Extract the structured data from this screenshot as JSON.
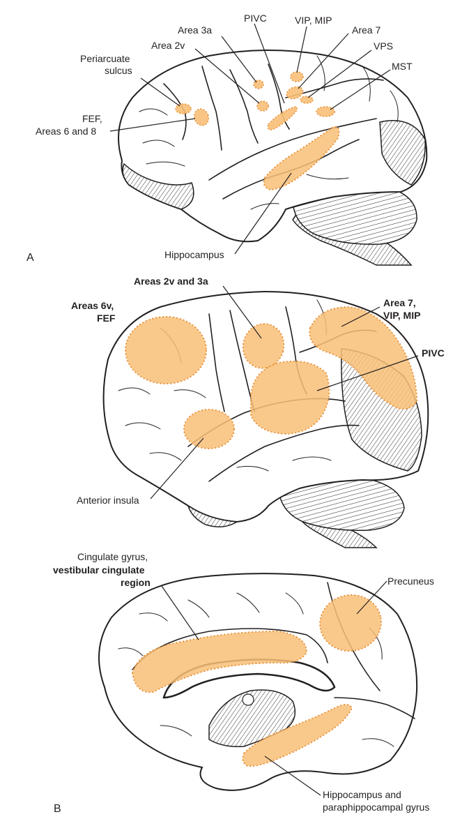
{
  "panels": {
    "a": {
      "letter": "A",
      "labels": {
        "pivc": "PIVC",
        "vip_mip": "VIP, MIP",
        "area3a": "Area 3a",
        "area7": "Area 7",
        "area2v": "Area 2v",
        "vps": "VPS",
        "periarcuate_1": "Periarcuate",
        "periarcuate_2": "sulcus",
        "mst": "MST",
        "fef_1": "FEF,",
        "fef_2": "Areas 6 and 8",
        "hippocampus": "Hippocampus"
      }
    },
    "b_lateral": {
      "labels": {
        "areas2v3a": "Areas 2v and 3a",
        "areas6v_1": "Areas 6v,",
        "areas6v_2": "FEF",
        "area7_1": "Area 7,",
        "area7_2": "VIP, MIP",
        "pivc": "PIVC",
        "anterior_insula": "Anterior insula"
      }
    },
    "b_medial": {
      "letter": "B",
      "labels": {
        "cingulate_1": "Cingulate gyrus,",
        "cingulate_2": "vestibular cingulate",
        "cingulate_3": "region",
        "precuneus": "Precuneus",
        "hippo_1": "Hippocampus and",
        "hippo_2": "paraphippocampal gyrus"
      }
    }
  },
  "colors": {
    "highlight_fill": "#f8bf78",
    "highlight_border": "#e8923a",
    "line": "#231f20"
  }
}
